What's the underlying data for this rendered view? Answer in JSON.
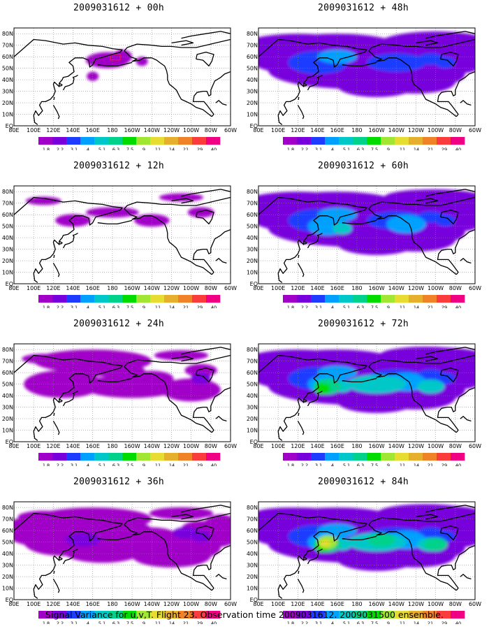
{
  "figure": {
    "caption": "Signal Variance for u,v,T. Flight 23. Observation time 2009031612. 2009031500 ensemble.",
    "lon_labels": [
      "80E",
      "100E",
      "120E",
      "140E",
      "160E",
      "180",
      "160W",
      "140W",
      "120W",
      "100W",
      "80W",
      "60W"
    ],
    "lat_labels": [
      "80N",
      "70N",
      "60N",
      "50N",
      "40N",
      "30N",
      "20N",
      "10N",
      "EQ"
    ],
    "legend": {
      "levels": [
        "1.8",
        "2.2",
        "3.1",
        "4",
        "5.1",
        "6.3",
        "7.5",
        "9",
        "11",
        "14",
        "21",
        "29",
        "40"
      ],
      "colors": [
        "#a000c8",
        "#7800dc",
        "#1e3cff",
        "#00a0ff",
        "#00c8c8",
        "#00d28c",
        "#00dc00",
        "#a0e632",
        "#e6dc32",
        "#e6af2d",
        "#f08228",
        "#fa3c3c",
        "#f00082"
      ]
    },
    "panels": [
      {
        "title": "2009031612 + 00h",
        "intensity": 0
      },
      {
        "title": "2009031612 + 12h",
        "intensity": 1
      },
      {
        "title": "2009031612 + 24h",
        "intensity": 2
      },
      {
        "title": "2009031612 + 36h",
        "intensity": 3
      },
      {
        "title": "2009031612 + 48h",
        "intensity": 4
      },
      {
        "title": "2009031612 + 60h",
        "intensity": 5
      },
      {
        "title": "2009031612 + 72h",
        "intensity": 6
      },
      {
        "title": "2009031612 + 84h",
        "intensity": 7
      }
    ]
  }
}
